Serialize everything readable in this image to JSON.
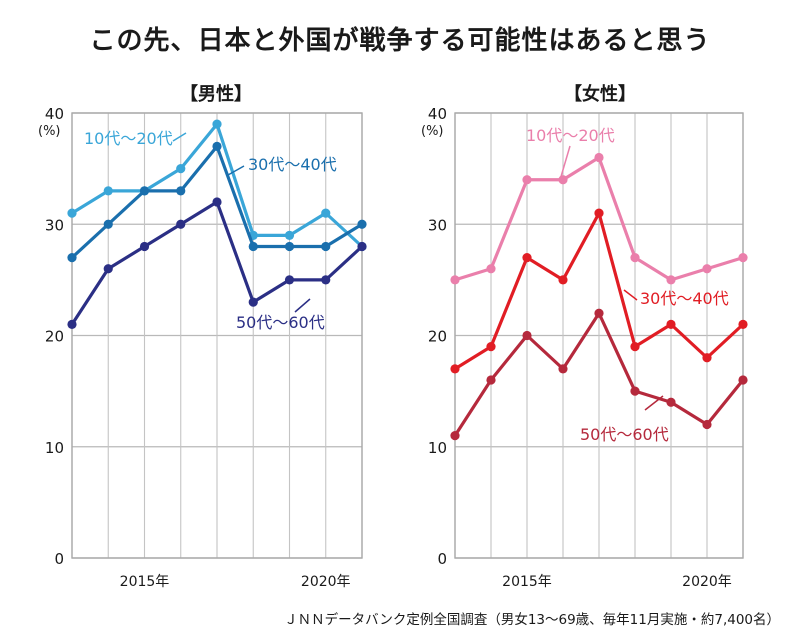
{
  "title": "この先、日本と外国が戦争する可能性はあると思う",
  "source": "ＪＮＮデータバンク定例全国調査（男女13～69歳、毎年11月実施・約7,400名）",
  "chart_data": [
    {
      "type": "line",
      "title": "【男性】",
      "ylabel": "(%)",
      "ylim": [
        0,
        40
      ],
      "yticks": [
        0,
        10,
        20,
        30,
        40
      ],
      "x": [
        2013,
        2014,
        2015,
        2016,
        2017,
        2018,
        2019,
        2020,
        2021
      ],
      "xticks": [
        {
          "value": 2015,
          "label": "2015年"
        },
        {
          "value": 2020,
          "label": "2020年"
        }
      ],
      "grid": true,
      "series": [
        {
          "name": "10代～20代",
          "color": "#3aa6d8",
          "values": [
            31,
            33,
            33,
            35,
            39,
            29,
            29,
            31,
            28
          ]
        },
        {
          "name": "30代～40代",
          "color": "#1a6fad",
          "values": [
            27,
            30,
            33,
            33,
            37,
            28,
            28,
            28,
            30
          ]
        },
        {
          "name": "50代～60代",
          "color": "#2b2f85",
          "values": [
            21,
            26,
            28,
            30,
            32,
            23,
            25,
            25,
            28
          ]
        }
      ]
    },
    {
      "type": "line",
      "title": "【女性】",
      "ylabel": "(%)",
      "ylim": [
        0,
        40
      ],
      "yticks": [
        0,
        10,
        20,
        30,
        40
      ],
      "x": [
        2013,
        2014,
        2015,
        2016,
        2017,
        2018,
        2019,
        2020,
        2021
      ],
      "xticks": [
        {
          "value": 2015,
          "label": "2015年"
        },
        {
          "value": 2020,
          "label": "2020年"
        }
      ],
      "grid": true,
      "series": [
        {
          "name": "10代～20代",
          "color": "#ea7fab",
          "values": [
            25,
            26,
            34,
            34,
            36,
            27,
            25,
            26,
            27
          ]
        },
        {
          "name": "30代～40代",
          "color": "#e11d24",
          "values": [
            17,
            19,
            27,
            25,
            31,
            19,
            21,
            18,
            21
          ]
        },
        {
          "name": "50代～60代",
          "color": "#b5293c",
          "values": [
            11,
            16,
            20,
            17,
            22,
            15,
            14,
            12,
            16
          ]
        }
      ]
    }
  ]
}
